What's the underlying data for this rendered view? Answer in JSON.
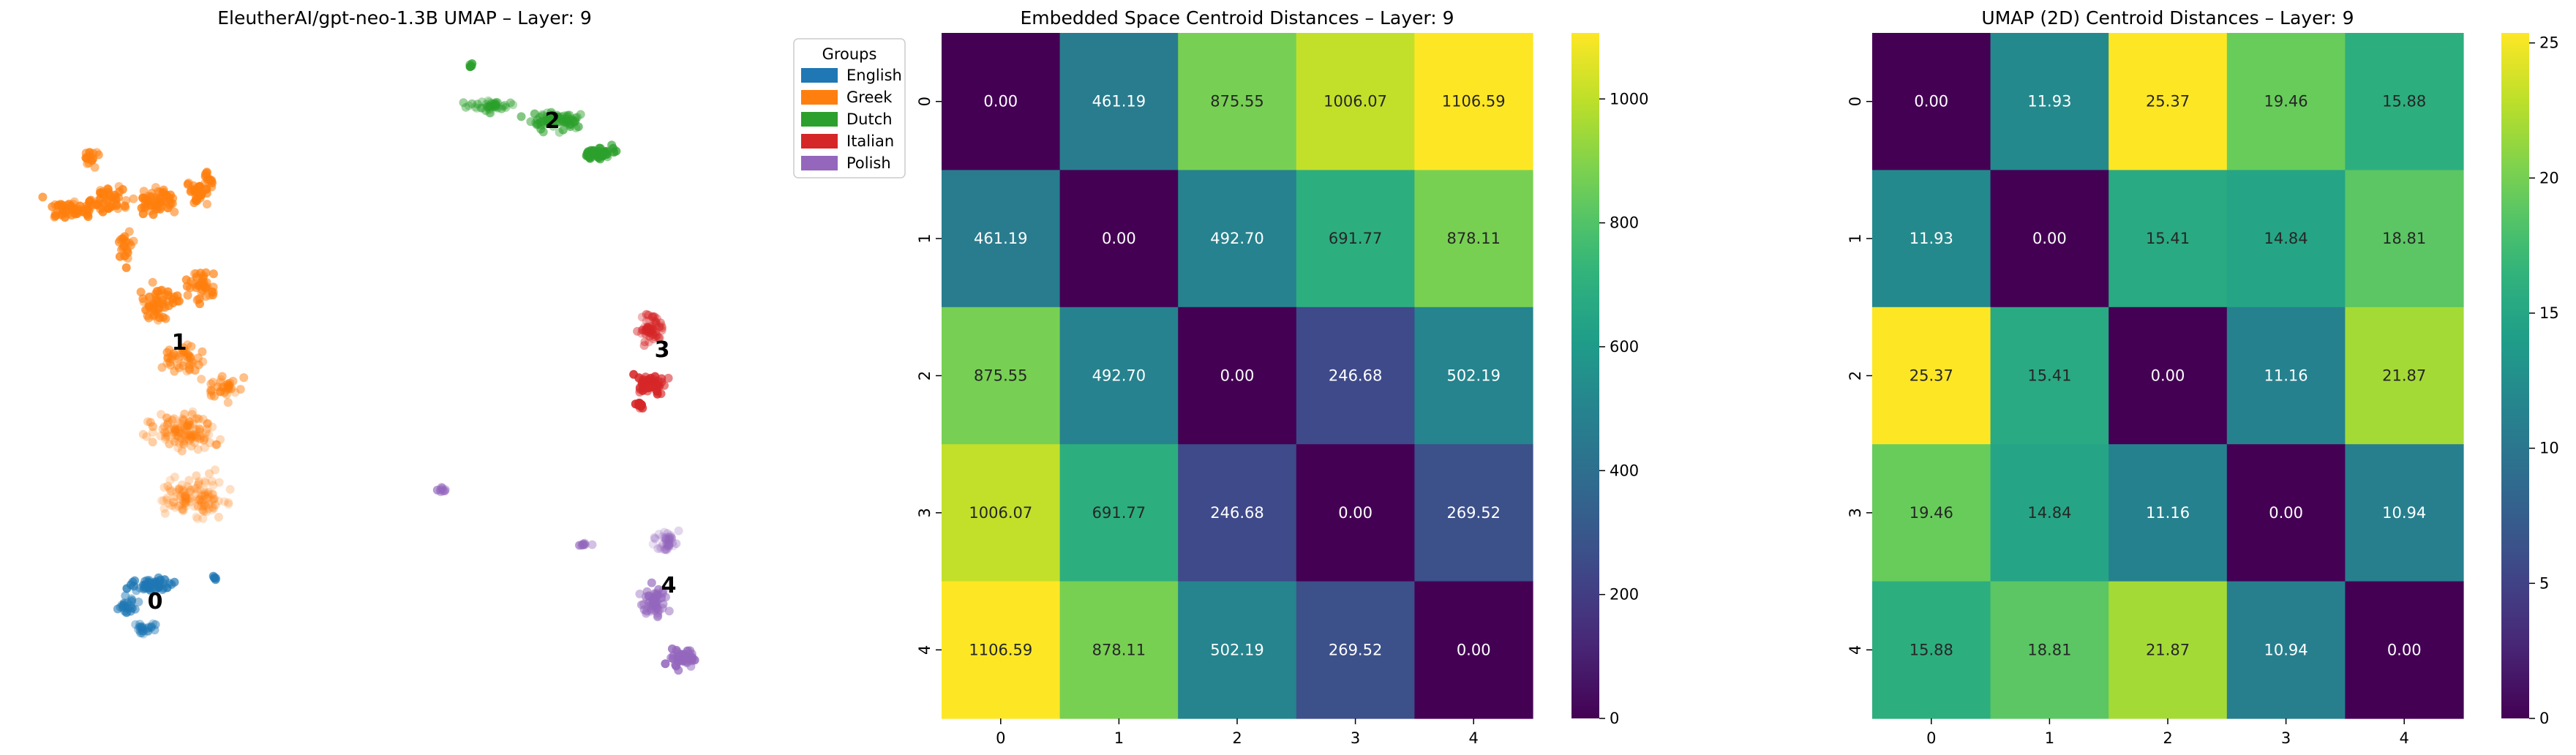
{
  "chart_data": [
    {
      "type": "scatter",
      "title": "EleutherAI/gpt-neo-1.3B UMAP – Layer: 9",
      "legend": {
        "title": "Groups",
        "placement": "outside-right",
        "entries": [
          {
            "name": "English",
            "color": "#1f77b4"
          },
          {
            "name": "Greek",
            "color": "#ff7f0e"
          },
          {
            "name": "Dutch",
            "color": "#2ca02c"
          },
          {
            "name": "Italian",
            "color": "#d62728"
          },
          {
            "name": "Polish",
            "color": "#9467bd"
          }
        ]
      },
      "axes_visible": false,
      "cluster_labels": [
        {
          "label": "0",
          "group": "English"
        },
        {
          "label": "1",
          "group": "Greek"
        },
        {
          "label": "2",
          "group": "Dutch"
        },
        {
          "label": "3",
          "group": "Italian"
        },
        {
          "label": "4",
          "group": "Polish"
        }
      ]
    },
    {
      "type": "heatmap",
      "title": "Embedded Space Centroid Distances – Layer: 9",
      "x_ticks": [
        "0",
        "1",
        "2",
        "3",
        "4"
      ],
      "y_ticks": [
        "0",
        "1",
        "2",
        "3",
        "4"
      ],
      "colormap": "viridis",
      "vmin": 0,
      "vmax": 1106.59,
      "colorbar_ticks": [
        0,
        200,
        400,
        600,
        800,
        1000
      ],
      "matrix": [
        [
          0.0,
          461.19,
          875.55,
          1006.07,
          1106.59
        ],
        [
          461.19,
          0.0,
          492.7,
          691.77,
          878.11
        ],
        [
          875.55,
          492.7,
          0.0,
          246.68,
          502.19
        ],
        [
          1006.07,
          691.77,
          246.68,
          0.0,
          269.52
        ],
        [
          1106.59,
          878.11,
          502.19,
          269.52,
          0.0
        ]
      ],
      "annotations": [
        [
          "0.00",
          "461.19",
          "875.55",
          "1006.07",
          "1106.59"
        ],
        [
          "461.19",
          "0.00",
          "492.70",
          "691.77",
          "878.11"
        ],
        [
          "875.55",
          "492.70",
          "0.00",
          "246.68",
          "502.19"
        ],
        [
          "1006.07",
          "691.77",
          "246.68",
          "0.00",
          "269.52"
        ],
        [
          "1106.59",
          "878.11",
          "502.19",
          "269.52",
          "0.00"
        ]
      ]
    },
    {
      "type": "heatmap",
      "title": "UMAP (2D) Centroid Distances – Layer: 9",
      "x_ticks": [
        "0",
        "1",
        "2",
        "3",
        "4"
      ],
      "y_ticks": [
        "0",
        "1",
        "2",
        "3",
        "4"
      ],
      "colormap": "viridis",
      "vmin": 0,
      "vmax": 25.37,
      "colorbar_ticks": [
        0,
        5,
        10,
        15,
        20,
        25
      ],
      "matrix": [
        [
          0.0,
          11.93,
          25.37,
          19.46,
          15.88
        ],
        [
          11.93,
          0.0,
          15.41,
          14.84,
          18.81
        ],
        [
          25.37,
          15.41,
          0.0,
          11.16,
          21.87
        ],
        [
          19.46,
          14.84,
          11.16,
          0.0,
          10.94
        ],
        [
          15.88,
          18.81,
          21.87,
          10.94,
          0.0
        ]
      ],
      "annotations": [
        [
          "0.00",
          "11.93",
          "25.37",
          "19.46",
          "15.88"
        ],
        [
          "11.93",
          "0.00",
          "15.41",
          "14.84",
          "18.81"
        ],
        [
          "25.37",
          "15.41",
          "0.00",
          "11.16",
          "21.87"
        ],
        [
          "19.46",
          "14.84",
          "11.16",
          "0.00",
          "10.94"
        ],
        [
          "15.88",
          "18.81",
          "21.87",
          "10.94",
          "0.00"
        ]
      ]
    }
  ]
}
